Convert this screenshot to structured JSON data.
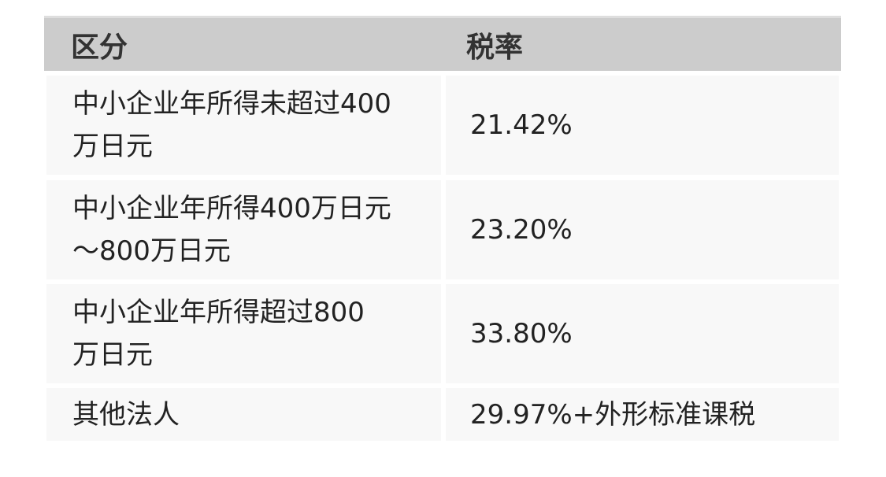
{
  "table": {
    "headers": [
      "区分",
      "税率"
    ],
    "rows": [
      {
        "category": "中小企业年所得未超过400万日元",
        "rate": "21.42%"
      },
      {
        "category": "中小企业年所得400万日元～800万日元",
        "rate": "23.20%"
      },
      {
        "category": "中小企业年所得超过800万日元",
        "rate": "33.80%"
      },
      {
        "category": "其他法人",
        "rate": "29.97%+外形标准课税"
      }
    ]
  }
}
